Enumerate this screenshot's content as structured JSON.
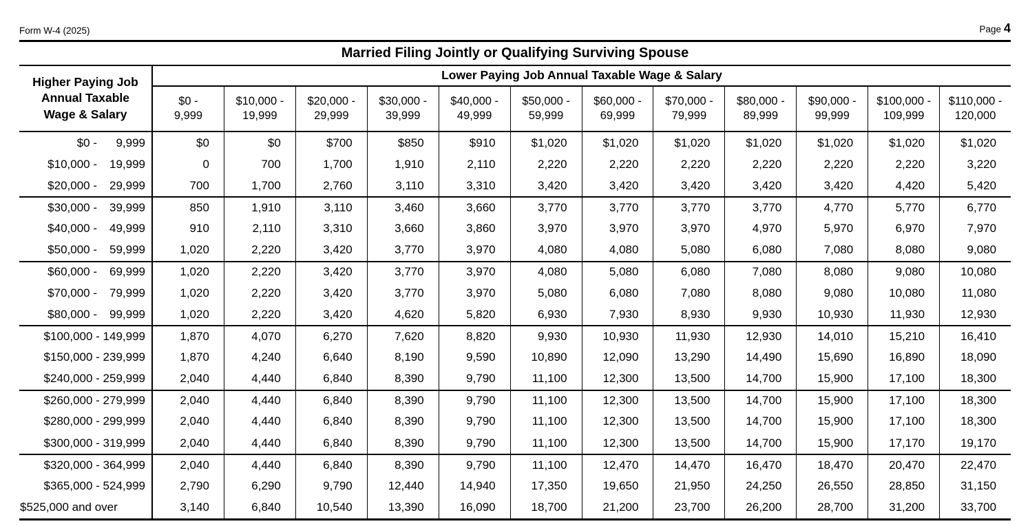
{
  "page": {
    "form_id": "Form W-4 (2025)",
    "page_label": "Page",
    "page_number": "4"
  },
  "title": "Married Filing Jointly or Qualifying Surviving Spouse",
  "colors": {
    "text": "#000000",
    "background": "#ffffff",
    "border": "#000000"
  },
  "table": {
    "corner_header": [
      "Higher Paying Job",
      "Annual Taxable",
      "Wage & Salary"
    ],
    "lower_header": "Lower Paying Job Annual Taxable Wage & Salary",
    "columns": [
      {
        "line1": "$0 -",
        "line2": "9,999"
      },
      {
        "line1": "$10,000 -",
        "line2": "19,999"
      },
      {
        "line1": "$20,000 -",
        "line2": "29,999"
      },
      {
        "line1": "$30,000 -",
        "line2": "39,999"
      },
      {
        "line1": "$40,000 -",
        "line2": "49,999"
      },
      {
        "line1": "$50,000 -",
        "line2": "59,999"
      },
      {
        "line1": "$60,000 -",
        "line2": "69,999"
      },
      {
        "line1": "$70,000 -",
        "line2": "79,999"
      },
      {
        "line1": "$80,000 -",
        "line2": "89,999"
      },
      {
        "line1": "$90,000 -",
        "line2": "99,999"
      },
      {
        "line1": "$100,000 -",
        "line2": "109,999"
      },
      {
        "line1": "$110,000 -",
        "line2": "120,000"
      }
    ],
    "group_rows": [
      3,
      6,
      9,
      12,
      15
    ],
    "rows": [
      {
        "label": {
          "start": "$0 -",
          "end": "9,999"
        },
        "values": [
          "$0",
          "$0",
          "$700",
          "$850",
          "$910",
          "$1,020",
          "$1,020",
          "$1,020",
          "$1,020",
          "$1,020",
          "$1,020",
          "$1,020"
        ]
      },
      {
        "label": {
          "start": "$10,000 -",
          "end": "19,999"
        },
        "values": [
          "0",
          "700",
          "1,700",
          "1,910",
          "2,110",
          "2,220",
          "2,220",
          "2,220",
          "2,220",
          "2,220",
          "2,220",
          "3,220"
        ]
      },
      {
        "label": {
          "start": "$20,000 -",
          "end": "29,999"
        },
        "values": [
          "700",
          "1,700",
          "2,760",
          "3,110",
          "3,310",
          "3,420",
          "3,420",
          "3,420",
          "3,420",
          "3,420",
          "4,420",
          "5,420"
        ]
      },
      {
        "label": {
          "start": "$30,000 -",
          "end": "39,999"
        },
        "values": [
          "850",
          "1,910",
          "3,110",
          "3,460",
          "3,660",
          "3,770",
          "3,770",
          "3,770",
          "3,770",
          "4,770",
          "5,770",
          "6,770"
        ]
      },
      {
        "label": {
          "start": "$40,000 -",
          "end": "49,999"
        },
        "values": [
          "910",
          "2,110",
          "3,310",
          "3,660",
          "3,860",
          "3,970",
          "3,970",
          "3,970",
          "4,970",
          "5,970",
          "6,970",
          "7,970"
        ]
      },
      {
        "label": {
          "start": "$50,000 -",
          "end": "59,999"
        },
        "values": [
          "1,020",
          "2,220",
          "3,420",
          "3,770",
          "3,970",
          "4,080",
          "4,080",
          "5,080",
          "6,080",
          "7,080",
          "8,080",
          "9,080"
        ]
      },
      {
        "label": {
          "start": "$60,000 -",
          "end": "69,999"
        },
        "values": [
          "1,020",
          "2,220",
          "3,420",
          "3,770",
          "3,970",
          "4,080",
          "5,080",
          "6,080",
          "7,080",
          "8,080",
          "9,080",
          "10,080"
        ]
      },
      {
        "label": {
          "start": "$70,000 -",
          "end": "79,999"
        },
        "values": [
          "1,020",
          "2,220",
          "3,420",
          "3,770",
          "3,970",
          "5,080",
          "6,080",
          "7,080",
          "8,080",
          "9,080",
          "10,080",
          "11,080"
        ]
      },
      {
        "label": {
          "start": "$80,000 -",
          "end": "99,999"
        },
        "values": [
          "1,020",
          "2,220",
          "3,420",
          "4,620",
          "5,820",
          "6,930",
          "7,930",
          "8,930",
          "9,930",
          "10,930",
          "11,930",
          "12,930"
        ]
      },
      {
        "label": {
          "text": "$100,000 - 149,999",
          "align": "right"
        },
        "values": [
          "1,870",
          "4,070",
          "6,270",
          "7,620",
          "8,820",
          "9,930",
          "10,930",
          "11,930",
          "12,930",
          "14,010",
          "15,210",
          "16,410"
        ]
      },
      {
        "label": {
          "text": "$150,000 - 239,999",
          "align": "right"
        },
        "values": [
          "1,870",
          "4,240",
          "6,640",
          "8,190",
          "9,590",
          "10,890",
          "12,090",
          "13,290",
          "14,490",
          "15,690",
          "16,890",
          "18,090"
        ]
      },
      {
        "label": {
          "text": "$240,000 - 259,999",
          "align": "right"
        },
        "values": [
          "2,040",
          "4,440",
          "6,840",
          "8,390",
          "9,790",
          "11,100",
          "12,300",
          "13,500",
          "14,700",
          "15,900",
          "17,100",
          "18,300"
        ]
      },
      {
        "label": {
          "text": "$260,000 - 279,999",
          "align": "right"
        },
        "values": [
          "2,040",
          "4,440",
          "6,840",
          "8,390",
          "9,790",
          "11,100",
          "12,300",
          "13,500",
          "14,700",
          "15,900",
          "17,100",
          "18,300"
        ]
      },
      {
        "label": {
          "text": "$280,000 - 299,999",
          "align": "right"
        },
        "values": [
          "2,040",
          "4,440",
          "6,840",
          "8,390",
          "9,790",
          "11,100",
          "12,300",
          "13,500",
          "14,700",
          "15,900",
          "17,100",
          "18,300"
        ]
      },
      {
        "label": {
          "text": "$300,000 - 319,999",
          "align": "right"
        },
        "values": [
          "2,040",
          "4,440",
          "6,840",
          "8,390",
          "9,790",
          "11,100",
          "12,300",
          "13,500",
          "14,700",
          "15,900",
          "17,170",
          "19,170"
        ]
      },
      {
        "label": {
          "text": "$320,000 - 364,999",
          "align": "right"
        },
        "values": [
          "2,040",
          "4,440",
          "6,840",
          "8,390",
          "9,790",
          "11,100",
          "12,470",
          "14,470",
          "16,470",
          "18,470",
          "20,470",
          "22,470"
        ]
      },
      {
        "label": {
          "text": "$365,000 - 524,999",
          "align": "right"
        },
        "values": [
          "2,790",
          "6,290",
          "9,790",
          "12,440",
          "14,940",
          "17,350",
          "19,650",
          "21,950",
          "24,250",
          "26,550",
          "28,850",
          "31,150"
        ]
      },
      {
        "label": {
          "text": "$525,000 and over",
          "align": "left"
        },
        "values": [
          "3,140",
          "6,840",
          "10,540",
          "13,390",
          "16,090",
          "18,700",
          "21,200",
          "23,700",
          "26,200",
          "28,700",
          "31,200",
          "33,700"
        ]
      }
    ]
  }
}
